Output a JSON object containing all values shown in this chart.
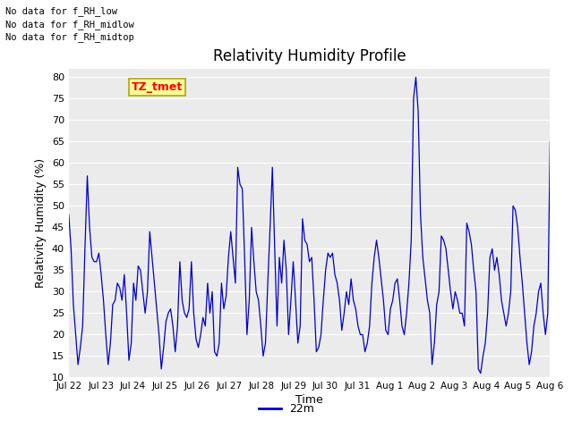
{
  "title": "Relativity Humidity Profile",
  "ylabel": "Relativity Humidity (%)",
  "xlabel": "Time",
  "ylim": [
    10,
    82
  ],
  "yticks": [
    10,
    15,
    20,
    25,
    30,
    35,
    40,
    45,
    50,
    55,
    60,
    65,
    70,
    75,
    80
  ],
  "line_color": "#0000CC",
  "legend_label": "22m",
  "bg_color": "#EBEBEB",
  "annotations": [
    "No data for f_RH_low",
    "No data for f_RH_midlow",
    "No data for f_RH_midtop"
  ],
  "tz_label": "TZ_tmet",
  "x_tick_labels": [
    "Jul 22",
    "Jul 23",
    "Jul 24",
    "Jul 25",
    "Jul 26",
    "Jul 27",
    "Jul 28",
    "Jul 29",
    "Jul 30",
    "Jul 31",
    "Aug 1",
    "Aug 2",
    "Aug 3",
    "Aug 4",
    "Aug 5",
    "Aug 6"
  ],
  "y_values": [
    48,
    40,
    27,
    20,
    13,
    17,
    22,
    40,
    57,
    45,
    38,
    37,
    37,
    39,
    34,
    28,
    20,
    13,
    18,
    27,
    28,
    32,
    31,
    28,
    34,
    25,
    14,
    18,
    32,
    28,
    36,
    35,
    30,
    25,
    30,
    44,
    38,
    32,
    26,
    20,
    12,
    17,
    23,
    25,
    26,
    22,
    16,
    22,
    37,
    28,
    25,
    24,
    26,
    37,
    25,
    19,
    17,
    20,
    24,
    22,
    32,
    25,
    30,
    16,
    15,
    18,
    32,
    26,
    29,
    38,
    44,
    38,
    32,
    59,
    55,
    54,
    38,
    20,
    28,
    45,
    37,
    30,
    28,
    22,
    15,
    18,
    32,
    45,
    59,
    40,
    22,
    38,
    32,
    42,
    35,
    20,
    28,
    37,
    28,
    18,
    22,
    47,
    42,
    41,
    37,
    38,
    28,
    16,
    17,
    20,
    28,
    35,
    39,
    38,
    39,
    34,
    32,
    28,
    21,
    25,
    30,
    27,
    33,
    28,
    26,
    22,
    20,
    20,
    16,
    18,
    22,
    32,
    38,
    42,
    38,
    33,
    28,
    21,
    20,
    26,
    28,
    32,
    33,
    28,
    22,
    20,
    25,
    32,
    42,
    75,
    80,
    72,
    48,
    38,
    33,
    28,
    25,
    13,
    18,
    27,
    30,
    43,
    42,
    40,
    35,
    30,
    26,
    30,
    28,
    25,
    25,
    22,
    46,
    44,
    41,
    35,
    30,
    12,
    11,
    15,
    18,
    25,
    38,
    40,
    35,
    38,
    34,
    28,
    25,
    22,
    25,
    30,
    50,
    49,
    45,
    38,
    32,
    25,
    18,
    13,
    16,
    22,
    25,
    30,
    32,
    25,
    20,
    25,
    65
  ]
}
